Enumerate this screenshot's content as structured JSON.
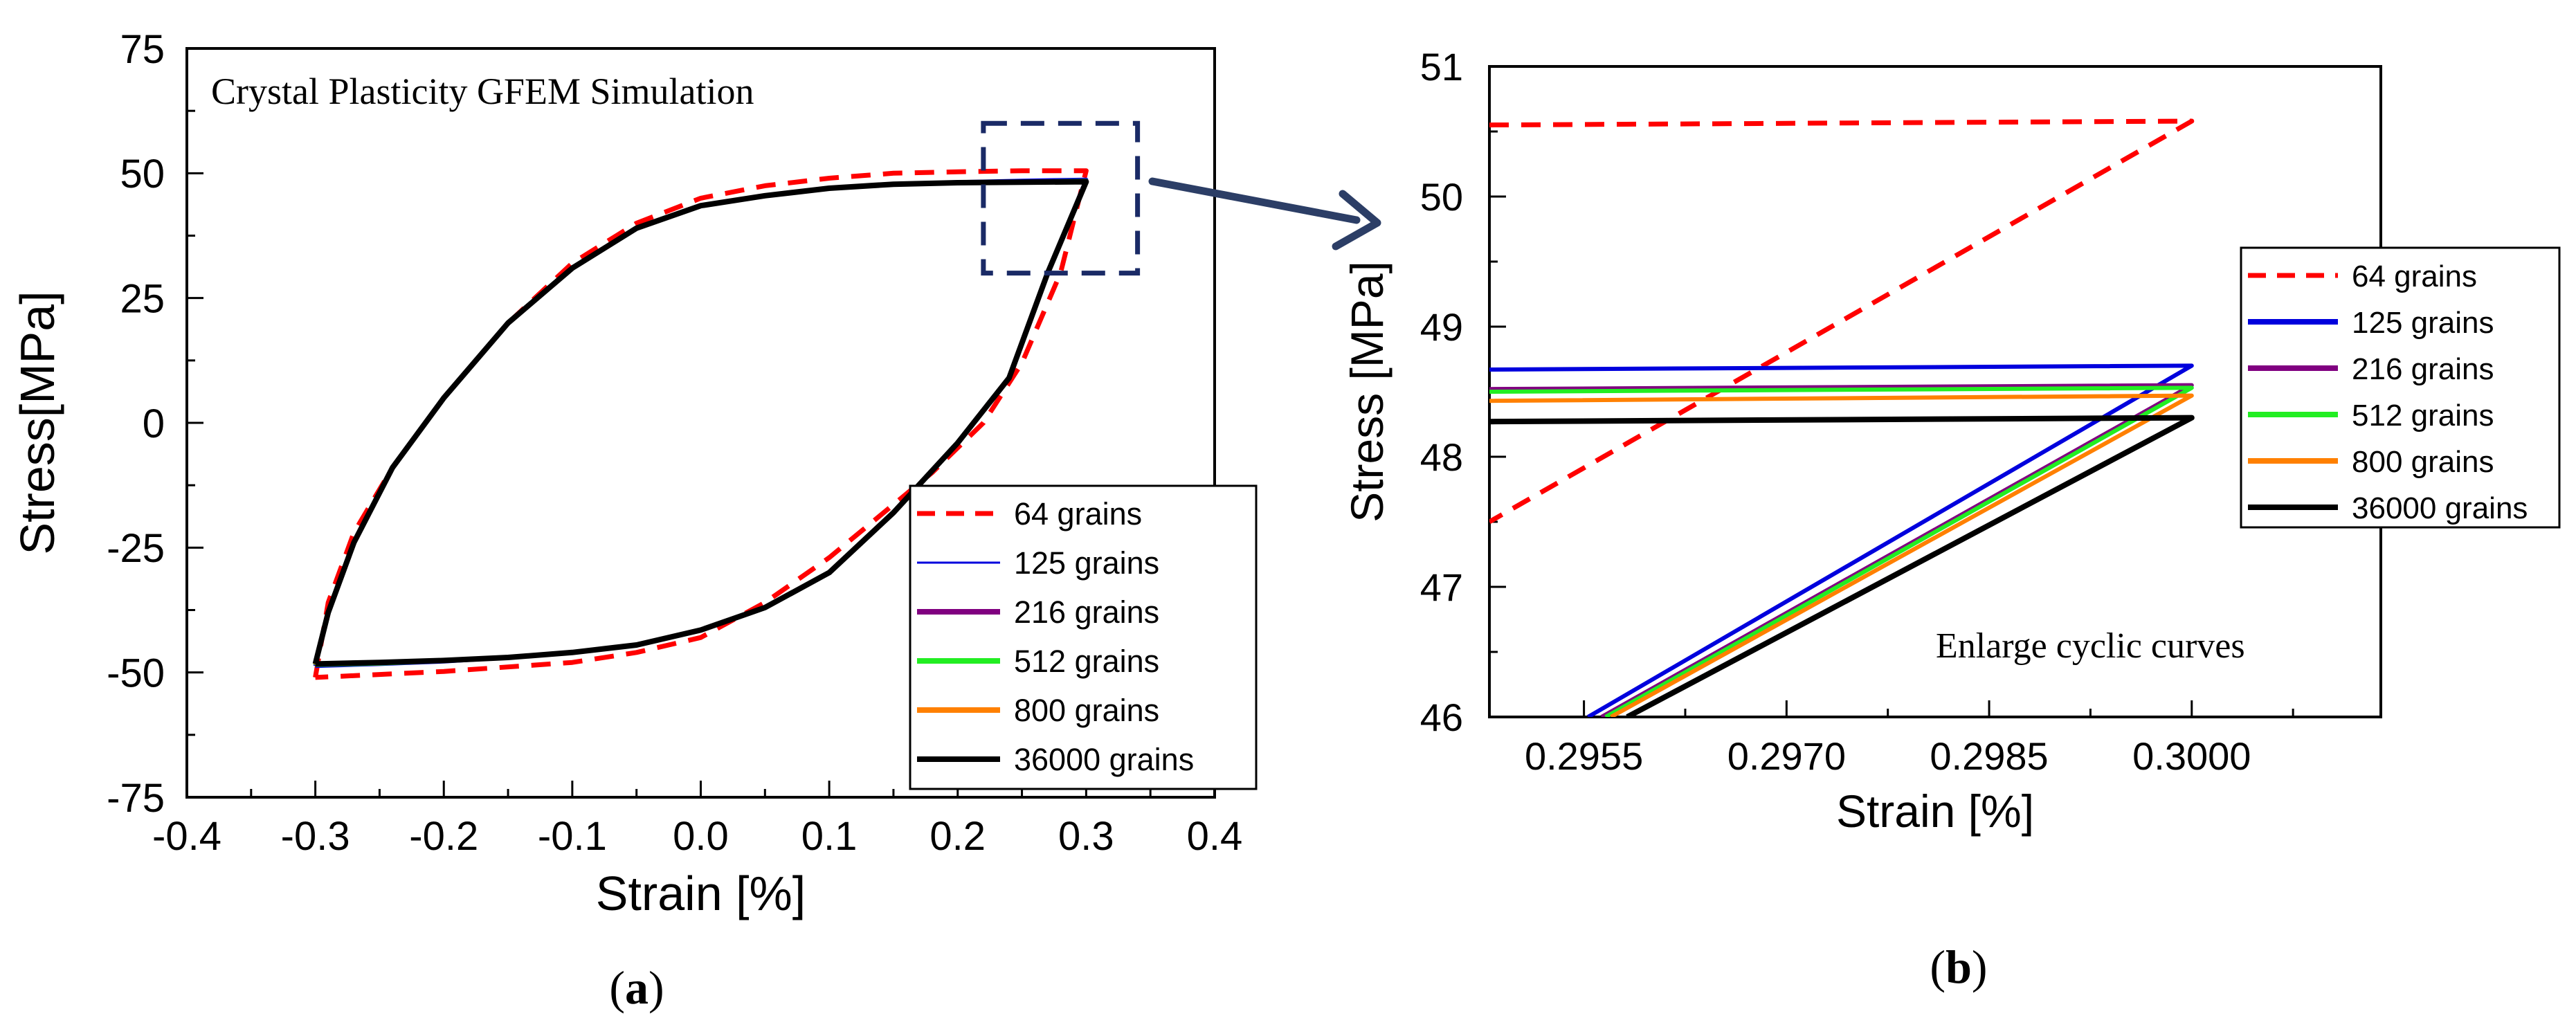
{
  "chart_data": [
    {
      "type": "line",
      "panel_label": "(a)",
      "panel_letter": "a",
      "annotation": "Crystal Plasticity GFEM Simulation",
      "xlabel": "Strain [%]",
      "ylabel": "Stress[MPa]",
      "xlim": [
        -0.4,
        0.4
      ],
      "ylim": [
        -75,
        75
      ],
      "xticks": [
        -0.4,
        -0.3,
        -0.2,
        -0.1,
        0.0,
        0.1,
        0.2,
        0.3,
        0.4
      ],
      "xtick_labels": [
        "-0.4",
        "-0.3",
        "-0.2",
        "-0.1",
        "0.0",
        "0.1",
        "0.2",
        "0.3",
        "0.4"
      ],
      "yticks": [
        -75,
        -50,
        -25,
        0,
        25,
        50,
        75
      ],
      "ytick_labels": [
        "-75",
        "-50",
        "-25",
        "0",
        "25",
        "50",
        "75"
      ],
      "zoom_box": {
        "x": [
          0.22,
          0.34
        ],
        "y": [
          30,
          60
        ]
      },
      "legend": {
        "placement": "bottom-right",
        "entries": [
          "64 grains",
          "125 grains",
          "216 grains",
          "512 grains",
          "800 grains",
          "36000 grains"
        ]
      },
      "series": [
        {
          "name": "64 grains",
          "color": "#ff0000",
          "dashed": true,
          "x": [
            -0.3,
            -0.29,
            -0.27,
            -0.24,
            -0.2,
            -0.15,
            -0.1,
            -0.05,
            0.0,
            0.05,
            0.1,
            0.15,
            0.2,
            0.25,
            0.29,
            0.3,
            0.28,
            0.25,
            0.22,
            0.18,
            0.1,
            0.05,
            0.0,
            -0.05,
            -0.1,
            -0.2,
            -0.25,
            -0.3
          ],
          "y": [
            -51,
            -36,
            -22,
            -9,
            5,
            20,
            32,
            40,
            45,
            47.5,
            49,
            50,
            50.3,
            50.5,
            50.5,
            50.5,
            30,
            12,
            0,
            -10,
            -27,
            -36,
            -43,
            -46,
            -48,
            -49.8,
            -50.4,
            -51
          ]
        },
        {
          "name": "125 grains",
          "color": "#0000dd",
          "dashed": false,
          "x": [
            -0.3,
            -0.29,
            -0.27,
            -0.24,
            -0.2,
            -0.15,
            -0.1,
            -0.05,
            0.0,
            0.05,
            0.1,
            0.15,
            0.2,
            0.25,
            0.3,
            0.27,
            0.24,
            0.2,
            0.15,
            0.1,
            0.05,
            0.0,
            -0.05,
            -0.1,
            -0.15,
            -0.2,
            -0.25,
            -0.3
          ],
          "y": [
            -48.7,
            -38,
            -24,
            -9,
            5,
            20,
            31,
            39,
            43.5,
            45.5,
            47,
            47.8,
            48.2,
            48.5,
            48.7,
            30,
            9,
            -4,
            -18,
            -30,
            -37,
            -41.5,
            -44.5,
            -46,
            -47,
            -47.8,
            -48.3,
            -48.7
          ]
        },
        {
          "name": "216 grains",
          "color": "#800080",
          "dashed": false,
          "x": [
            -0.3,
            -0.29,
            -0.27,
            -0.24,
            -0.2,
            -0.15,
            -0.1,
            -0.05,
            0.0,
            0.05,
            0.1,
            0.15,
            0.2,
            0.25,
            0.3,
            0.27,
            0.24,
            0.2,
            0.15,
            0.1,
            0.05,
            0.0,
            -0.05,
            -0.1,
            -0.15,
            -0.2,
            -0.25,
            -0.3
          ],
          "y": [
            -48.5,
            -38,
            -24,
            -9,
            5,
            20,
            31,
            39,
            43.5,
            45.5,
            47,
            47.8,
            48.1,
            48.3,
            48.5,
            30,
            9,
            -4,
            -18,
            -30,
            -37,
            -41.5,
            -44.5,
            -46,
            -47,
            -47.7,
            -48.2,
            -48.5
          ]
        },
        {
          "name": "512 grains",
          "color": "#22ee22",
          "dashed": false,
          "x": [
            -0.3,
            -0.29,
            -0.27,
            -0.24,
            -0.2,
            -0.15,
            -0.1,
            -0.05,
            0.0,
            0.05,
            0.1,
            0.15,
            0.2,
            0.25,
            0.3,
            0.27,
            0.24,
            0.2,
            0.15,
            0.1,
            0.05,
            0.0,
            -0.05,
            -0.1,
            -0.15,
            -0.2,
            -0.25,
            -0.3
          ],
          "y": [
            -48.5,
            -38,
            -24,
            -9,
            5,
            20,
            31,
            39,
            43.5,
            45.5,
            47,
            47.8,
            48.1,
            48.3,
            48.5,
            30,
            9,
            -4,
            -18,
            -30,
            -37,
            -41.5,
            -44.5,
            -46,
            -47,
            -47.7,
            -48.2,
            -48.5
          ]
        },
        {
          "name": "800 grains",
          "color": "#ff8000",
          "dashed": false,
          "x": [
            -0.3,
            -0.29,
            -0.27,
            -0.24,
            -0.2,
            -0.15,
            -0.1,
            -0.05,
            0.0,
            0.05,
            0.1,
            0.15,
            0.2,
            0.25,
            0.3,
            0.27,
            0.24,
            0.2,
            0.15,
            0.1,
            0.05,
            0.0,
            -0.05,
            -0.1,
            -0.15,
            -0.2,
            -0.25,
            -0.3
          ],
          "y": [
            -48.4,
            -38,
            -24,
            -9,
            5,
            20,
            31,
            39,
            43.5,
            45.5,
            47,
            47.8,
            48.1,
            48.3,
            48.4,
            30,
            9,
            -4,
            -18,
            -30,
            -37,
            -41.5,
            -44.5,
            -46,
            -47,
            -47.6,
            -48.1,
            -48.4
          ]
        },
        {
          "name": "36000 grains",
          "color": "#000000",
          "dashed": false,
          "x": [
            -0.3,
            -0.29,
            -0.27,
            -0.24,
            -0.2,
            -0.15,
            -0.1,
            -0.05,
            0.0,
            0.05,
            0.1,
            0.15,
            0.2,
            0.25,
            0.3,
            0.27,
            0.24,
            0.2,
            0.15,
            0.1,
            0.05,
            0.0,
            -0.05,
            -0.1,
            -0.15,
            -0.2,
            -0.25,
            -0.3
          ],
          "y": [
            -48.3,
            -38,
            -24,
            -9,
            5,
            20,
            31,
            39,
            43.5,
            45.5,
            47,
            47.8,
            48.1,
            48.2,
            48.3,
            30,
            9,
            -4,
            -18,
            -30,
            -37,
            -41.5,
            -44.5,
            -46,
            -47,
            -47.6,
            -48.0,
            -48.3
          ]
        }
      ]
    },
    {
      "type": "line",
      "panel_label": "(b)",
      "panel_letter": "b",
      "annotation": "Enlarge cyclic curves",
      "xlabel": "Strain [%]",
      "ylabel": "Stress [MPa]",
      "xlim": [
        0.2948,
        0.3014
      ],
      "ylim": [
        46,
        51
      ],
      "xticks": [
        0.2955,
        0.297,
        0.2985,
        0.3
      ],
      "xtick_labels": [
        "0.2955",
        "0.2970",
        "0.2985",
        "0.3000"
      ],
      "yticks": [
        46,
        47,
        48,
        49,
        50,
        51
      ],
      "ytick_labels": [
        "46",
        "47",
        "48",
        "49",
        "50",
        "51"
      ],
      "legend": {
        "placement": "right",
        "entries": [
          "64 grains",
          "125 grains",
          "216 grains",
          "512 grains",
          "800 grains",
          "36000 grains"
        ]
      },
      "series": [
        {
          "name": "64 grains",
          "color": "#ff0000",
          "dashed": true,
          "x": [
            0.2948,
            0.3,
            0.2948
          ],
          "y": [
            50.55,
            50.58,
            47.5
          ]
        },
        {
          "name": "125 grains",
          "color": "#0000dd",
          "dashed": false,
          "x": [
            0.2948,
            0.3,
            0.29553
          ],
          "y": [
            48.67,
            48.7,
            46.0
          ]
        },
        {
          "name": "216 grains",
          "color": "#800080",
          "dashed": false,
          "x": [
            0.2948,
            0.3,
            0.29563
          ],
          "y": [
            48.52,
            48.55,
            46.0
          ]
        },
        {
          "name": "512 grains",
          "color": "#22ee22",
          "dashed": false,
          "x": [
            0.2948,
            0.3,
            0.29566
          ],
          "y": [
            48.5,
            48.53,
            46.0
          ]
        },
        {
          "name": "800 grains",
          "color": "#ff8000",
          "dashed": false,
          "x": [
            0.2948,
            0.3,
            0.2957
          ],
          "y": [
            48.43,
            48.47,
            46.0
          ]
        },
        {
          "name": "36000 grains",
          "color": "#000000",
          "dashed": false,
          "x": [
            0.2948,
            0.3,
            0.29582
          ],
          "y": [
            48.27,
            48.3,
            46.0
          ]
        }
      ]
    }
  ]
}
